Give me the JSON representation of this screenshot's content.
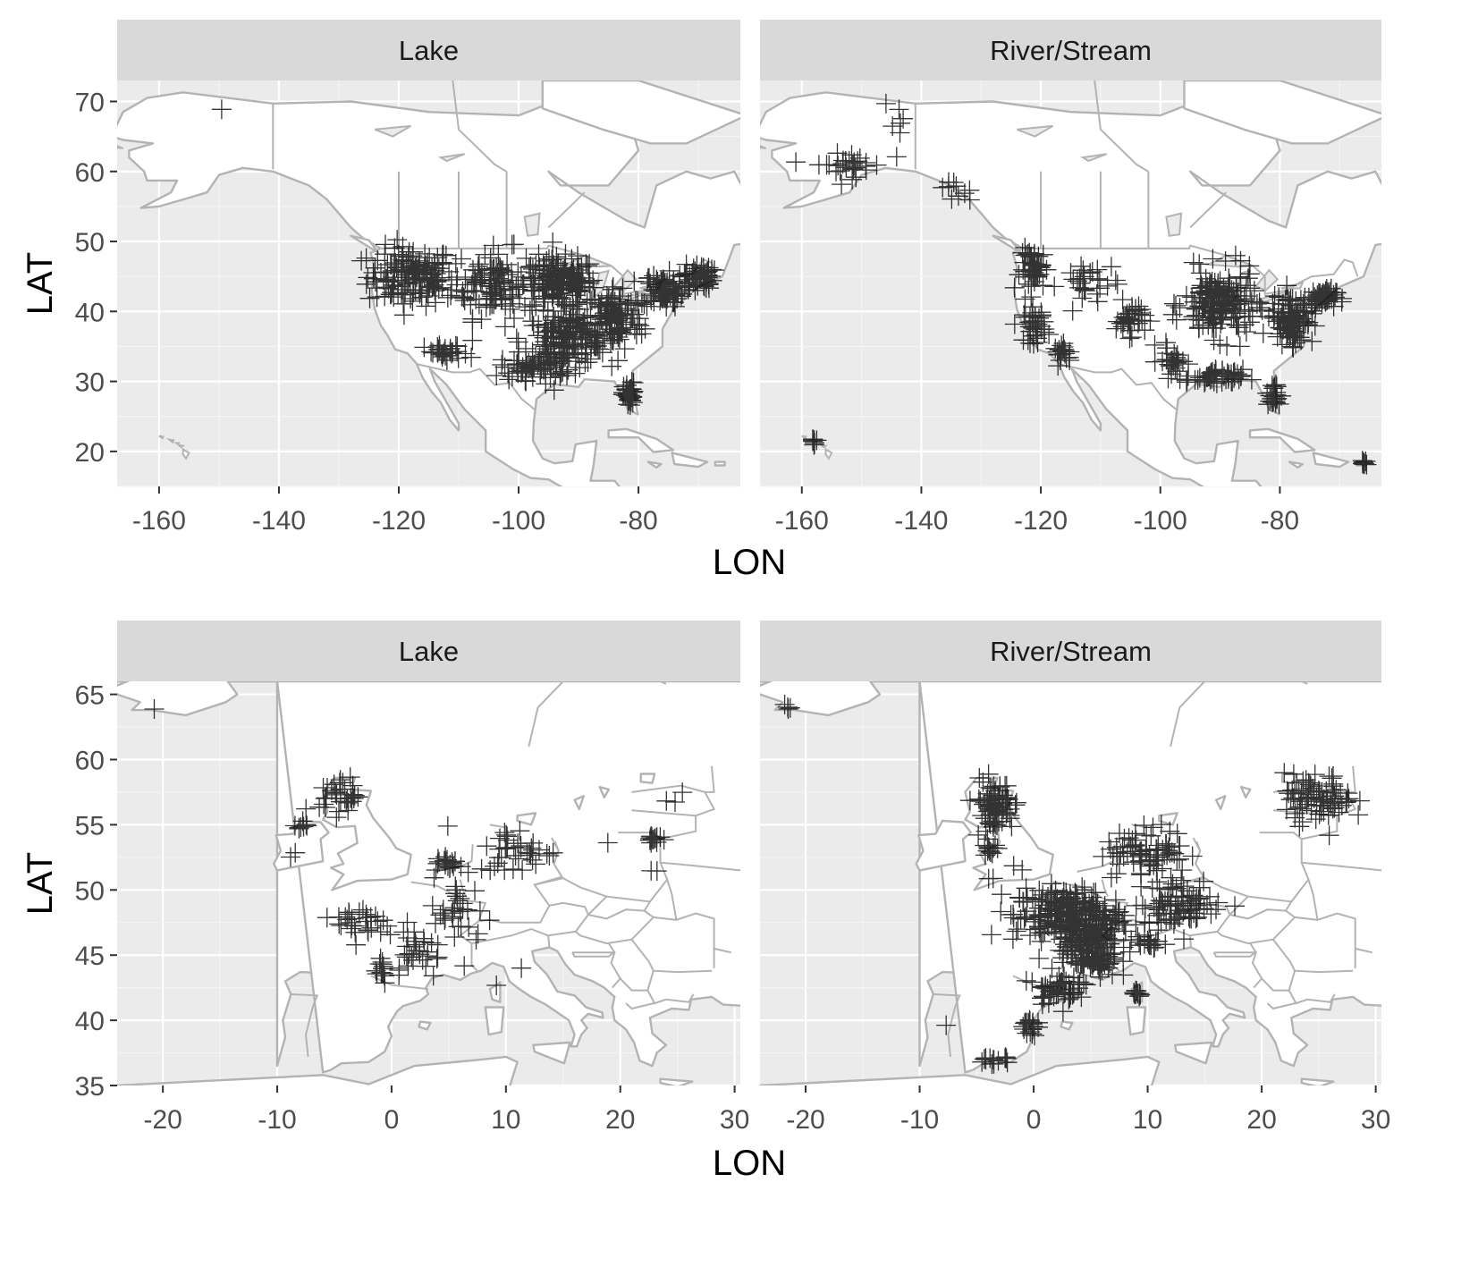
{
  "colors": {
    "panel_bg": "#ebebeb",
    "grid_major": "#ffffff",
    "grid_minor": "#f5f5f5",
    "strip_bg": "#d9d9d9",
    "land": "#ffffff",
    "land_border": "#b3b3b3",
    "marker": "#000000",
    "tick_text": "#4d4d4d",
    "title_text": "#000000"
  },
  "chart_data": [
    {
      "type": "scatter",
      "region": "North America",
      "marker": "plus",
      "xlabel": "LON",
      "ylabel": "LAT",
      "xlim": [
        -167,
        -63
      ],
      "ylim": [
        15,
        73
      ],
      "xticks": [
        -160,
        -140,
        -120,
        -100,
        -80
      ],
      "yticks": [
        20,
        30,
        40,
        50,
        60,
        70
      ],
      "grid": true,
      "panels": [
        {
          "strip": "Lake",
          "clusters": [
            {
              "center": [
                -149.5,
                68.7
              ],
              "spread": [
                0.3,
                0.3
              ],
              "count": 1
            },
            {
              "center": [
                -118,
                45
              ],
              "spread": [
                6,
                3.5
              ],
              "count": 150
            },
            {
              "center": [
                -104,
                44
              ],
              "spread": [
                6,
                4
              ],
              "count": 120
            },
            {
              "center": [
                -93,
                44
              ],
              "spread": [
                5,
                3
              ],
              "count": 160
            },
            {
              "center": [
                -92,
                36
              ],
              "spread": [
                6,
                3
              ],
              "count": 160
            },
            {
              "center": [
                -84,
                39
              ],
              "spread": [
                4,
                4
              ],
              "count": 110
            },
            {
              "center": [
                -76,
                43
              ],
              "spread": [
                3,
                2
              ],
              "count": 80
            },
            {
              "center": [
                -70,
                45
              ],
              "spread": [
                2,
                1.5
              ],
              "count": 50
            },
            {
              "center": [
                -81.5,
                28
              ],
              "spread": [
                0.8,
                1.5
              ],
              "count": 40
            },
            {
              "center": [
                -112,
                34
              ],
              "spread": [
                3,
                1
              ],
              "count": 30
            },
            {
              "center": [
                -97,
                32
              ],
              "spread": [
                5,
                1.5
              ],
              "count": 60
            }
          ]
        },
        {
          "strip": "River/Stream",
          "clusters": [
            {
              "center": [
                -158,
                21.5
              ],
              "spread": [
                0.5,
                0.5
              ],
              "count": 8
            },
            {
              "center": [
                -66,
                18.3
              ],
              "spread": [
                0.4,
                0.3
              ],
              "count": 8
            },
            {
              "center": [
                -152,
                61
              ],
              "spread": [
                5,
                1.5
              ],
              "count": 30
            },
            {
              "center": [
                -144,
                67
              ],
              "spread": [
                2,
                2
              ],
              "count": 6
            },
            {
              "center": [
                -135,
                57
              ],
              "spread": [
                3,
                1.5
              ],
              "count": 10
            },
            {
              "center": [
                -121,
                46
              ],
              "spread": [
                2,
                2.5
              ],
              "count": 50
            },
            {
              "center": [
                -121,
                38
              ],
              "spread": [
                1.5,
                2
              ],
              "count": 40
            },
            {
              "center": [
                -116,
                34
              ],
              "spread": [
                1.5,
                1
              ],
              "count": 20
            },
            {
              "center": [
                -112,
                44
              ],
              "spread": [
                4,
                3
              ],
              "count": 30
            },
            {
              "center": [
                -105,
                39
              ],
              "spread": [
                2,
                2
              ],
              "count": 35
            },
            {
              "center": [
                -90,
                41
              ],
              "spread": [
                5,
                4
              ],
              "count": 180
            },
            {
              "center": [
                -78,
                39
              ],
              "spread": [
                3,
                3
              ],
              "count": 100
            },
            {
              "center": [
                -73,
                42
              ],
              "spread": [
                2,
                1
              ],
              "count": 50
            },
            {
              "center": [
                -91,
                30.5
              ],
              "spread": [
                4,
                1
              ],
              "count": 50
            },
            {
              "center": [
                -81,
                28
              ],
              "spread": [
                1,
                1.5
              ],
              "count": 25
            },
            {
              "center": [
                -98,
                33
              ],
              "spread": [
                2,
                2
              ],
              "count": 25
            }
          ]
        }
      ]
    },
    {
      "type": "scatter",
      "region": "Europe",
      "marker": "plus",
      "xlabel": "LON",
      "ylabel": "LAT",
      "xlim": [
        -24,
        30.5
      ],
      "ylim": [
        35,
        66
      ],
      "xticks": [
        -20,
        -10,
        0,
        10,
        20,
        30
      ],
      "yticks": [
        35,
        40,
        45,
        50,
        55,
        60,
        65
      ],
      "grid": true,
      "panels": [
        {
          "strip": "Lake",
          "clusters": [
            {
              "center": [
                -21,
                64.1
              ],
              "spread": [
                0.3,
                0.2
              ],
              "count": 1
            },
            {
              "center": [
                -4.5,
                57.3
              ],
              "spread": [
                1.5,
                1.2
              ],
              "count": 35
            },
            {
              "center": [
                -8,
                55
              ],
              "spread": [
                0.5,
                0.4
              ],
              "count": 8
            },
            {
              "center": [
                -8.5,
                52.6
              ],
              "spread": [
                0.3,
                0.2
              ],
              "count": 2
            },
            {
              "center": [
                -2.5,
                47.5
              ],
              "spread": [
                2,
                1.2
              ],
              "count": 30
            },
            {
              "center": [
                -1,
                44
              ],
              "spread": [
                0.6,
                1
              ],
              "count": 15
            },
            {
              "center": [
                2,
                45.5
              ],
              "spread": [
                2,
                2
              ],
              "count": 30
            },
            {
              "center": [
                6,
                48
              ],
              "spread": [
                2,
                2.5
              ],
              "count": 35
            },
            {
              "center": [
                5,
                52
              ],
              "spread": [
                1,
                0.5
              ],
              "count": 20
            },
            {
              "center": [
                11,
                53
              ],
              "spread": [
                3,
                1.5
              ],
              "count": 40
            },
            {
              "center": [
                23,
                54
              ],
              "spread": [
                0.5,
                0.3
              ],
              "count": 15
            },
            {
              "center": [
                24,
                57
              ],
              "spread": [
                1,
                0.8
              ],
              "count": 3
            },
            {
              "center": [
                23,
                51.5
              ],
              "spread": [
                0.4,
                0.3
              ],
              "count": 2
            },
            {
              "center": [
                9,
                42.7
              ],
              "spread": [
                0.2,
                0.2
              ],
              "count": 1
            },
            {
              "center": [
                11.5,
                44
              ],
              "spread": [
                0.2,
                0.2
              ],
              "count": 1
            },
            {
              "center": [
                19,
                53.7
              ],
              "spread": [
                0.3,
                0.2
              ],
              "count": 1
            }
          ]
        },
        {
          "strip": "River/Stream",
          "clusters": [
            {
              "center": [
                -21.5,
                64
              ],
              "spread": [
                0.6,
                0.3
              ],
              "count": 4
            },
            {
              "center": [
                -3.5,
                56.5
              ],
              "spread": [
                1.5,
                1.6
              ],
              "count": 80
            },
            {
              "center": [
                -3.8,
                53.2
              ],
              "spread": [
                0.4,
                0.5
              ],
              "count": 12
            },
            {
              "center": [
                -3.9,
                50.8
              ],
              "spread": [
                0.3,
                0.2
              ],
              "count": 2
            },
            {
              "center": [
                -1.2,
                51.5
              ],
              "spread": [
                0.2,
                0.2
              ],
              "count": 1
            },
            {
              "center": [
                3,
                48
              ],
              "spread": [
                4,
                1.8
              ],
              "count": 250
            },
            {
              "center": [
                5,
                45.5
              ],
              "spread": [
                2,
                2
              ],
              "count": 150
            },
            {
              "center": [
                10,
                53
              ],
              "spread": [
                3,
                1.5
              ],
              "count": 80
            },
            {
              "center": [
                13,
                49
              ],
              "spread": [
                3,
                1.5
              ],
              "count": 80
            },
            {
              "center": [
                2,
                42.5
              ],
              "spread": [
                1.5,
                1
              ],
              "count": 50
            },
            {
              "center": [
                -0.5,
                39.5
              ],
              "spread": [
                0.6,
                0.6
              ],
              "count": 20
            },
            {
              "center": [
                -3.5,
                37
              ],
              "spread": [
                1.2,
                0.3
              ],
              "count": 15
            },
            {
              "center": [
                9,
                42
              ],
              "spread": [
                0.4,
                0.4
              ],
              "count": 10
            },
            {
              "center": [
                10,
                46
              ],
              "spread": [
                1,
                0.5
              ],
              "count": 20
            },
            {
              "center": [
                25,
                57
              ],
              "spread": [
                2.5,
                1.5
              ],
              "count": 80
            },
            {
              "center": [
                -7.5,
                39.5
              ],
              "spread": [
                0.2,
                0.2
              ],
              "count": 1
            }
          ]
        }
      ]
    }
  ]
}
